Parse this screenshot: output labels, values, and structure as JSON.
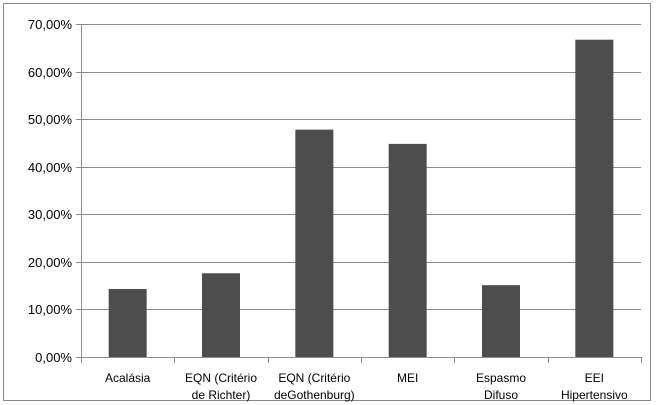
{
  "chart_data": {
    "type": "bar",
    "title": "",
    "xlabel": "",
    "ylabel": "",
    "categories": [
      [
        "Acalásia"
      ],
      [
        "EQN (Critério",
        "de Richter)"
      ],
      [
        "EQN (Critério",
        "deGothenburg)"
      ],
      [
        "MEI"
      ],
      [
        "Espasmo",
        "Difuso"
      ],
      [
        "EEI",
        "Hipertensivo"
      ]
    ],
    "values": [
      14.3,
      17.6,
      47.8,
      44.8,
      15.1,
      66.7
    ],
    "ylim": [
      0,
      70
    ],
    "yticks": [
      0,
      10,
      20,
      30,
      40,
      50,
      60,
      70
    ],
    "ytick_labels": [
      "0,00%",
      "10,00%",
      "20,00%",
      "30,00%",
      "40,00%",
      "50,00%",
      "60,00%",
      "70,00%"
    ],
    "grid": true,
    "legend": "none",
    "bar_color": "#4d4d4d",
    "grid_color": "#8c8c8c"
  }
}
